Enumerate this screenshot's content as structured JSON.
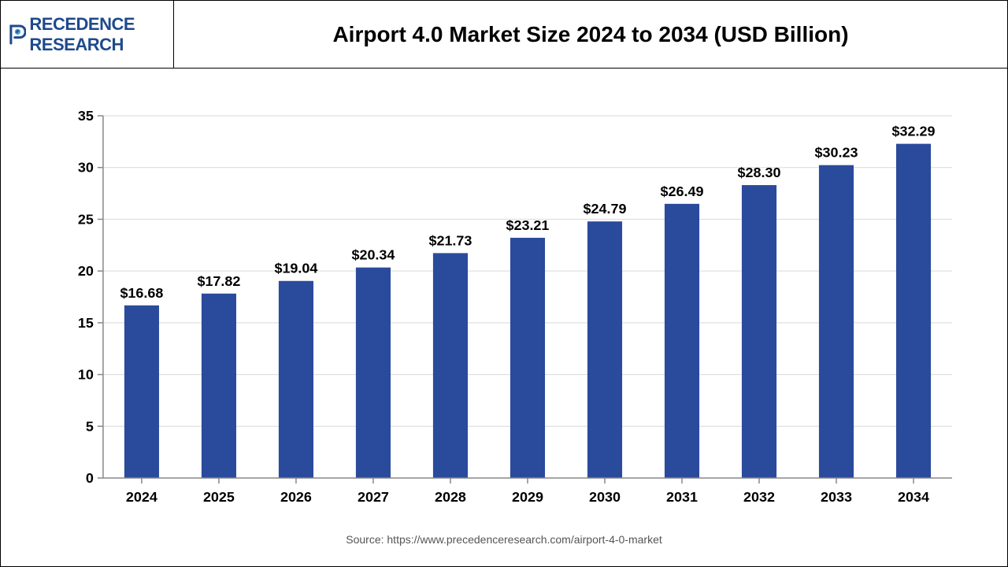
{
  "logo": {
    "brand_top": "RECEDENCE",
    "brand_sub": "RESEARCH",
    "icon_color": "#1e4a8c"
  },
  "chart": {
    "type": "bar",
    "title": "Airport 4.0 Market Size 2024 to 2034 (USD Billion)",
    "categories": [
      "2024",
      "2025",
      "2026",
      "2027",
      "2028",
      "2029",
      "2030",
      "2031",
      "2032",
      "2033",
      "2034"
    ],
    "values": [
      16.68,
      17.82,
      19.04,
      20.34,
      21.73,
      23.21,
      24.79,
      26.49,
      28.3,
      30.23,
      32.29
    ],
    "value_prefix": "$",
    "bar_color": "#2a4a9c",
    "background_color": "#ffffff",
    "grid_color": "#d9d9d9",
    "axis_color": "#888888",
    "ylim": [
      0,
      35
    ],
    "ytick_step": 5,
    "bar_width_ratio": 0.45,
    "title_fontsize": 28,
    "tick_fontsize": 18,
    "label_fontsize": 18,
    "font_weight": "bold"
  },
  "source": "Source: https://www.precedenceresearch.com/airport-4-0-market"
}
